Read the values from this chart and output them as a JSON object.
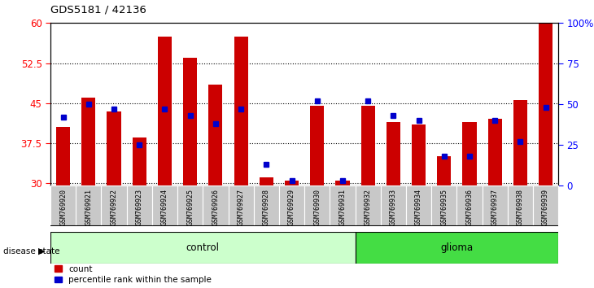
{
  "title": "GDS5181 / 42136",
  "samples": [
    "GSM769920",
    "GSM769921",
    "GSM769922",
    "GSM769923",
    "GSM769924",
    "GSM769925",
    "GSM769926",
    "GSM769927",
    "GSM769928",
    "GSM769929",
    "GSM769930",
    "GSM769931",
    "GSM769932",
    "GSM769933",
    "GSM769934",
    "GSM769935",
    "GSM769936",
    "GSM769937",
    "GSM769938",
    "GSM769939"
  ],
  "counts": [
    40.5,
    46.0,
    43.5,
    38.5,
    57.5,
    53.5,
    48.5,
    57.5,
    31.0,
    30.5,
    44.5,
    30.5,
    44.5,
    41.5,
    41.0,
    35.0,
    41.5,
    42.0,
    45.5,
    60.0
  ],
  "percentile_pct": [
    42,
    50,
    47,
    25,
    47,
    43,
    38,
    47,
    13,
    3,
    52,
    3,
    52,
    43,
    40,
    18,
    18,
    40,
    27,
    48
  ],
  "ylim_left": [
    29.5,
    60
  ],
  "yticks_left": [
    30,
    37.5,
    45,
    52.5,
    60
  ],
  "yticks_right": [
    0,
    25,
    50,
    75,
    100
  ],
  "control_count": 12,
  "glioma_count": 8,
  "bar_color": "#cc0000",
  "dot_color": "#0000cc",
  "bar_width": 0.55,
  "control_label": "control",
  "glioma_label": "glioma",
  "legend_count": "count",
  "legend_percentile": "percentile rank within the sample",
  "disease_state_label": "disease state",
  "tick_label_bg": "#c8c8c8",
  "control_bg": "#ccffcc",
  "glioma_bg": "#44dd44",
  "plot_bg": "#ffffff"
}
